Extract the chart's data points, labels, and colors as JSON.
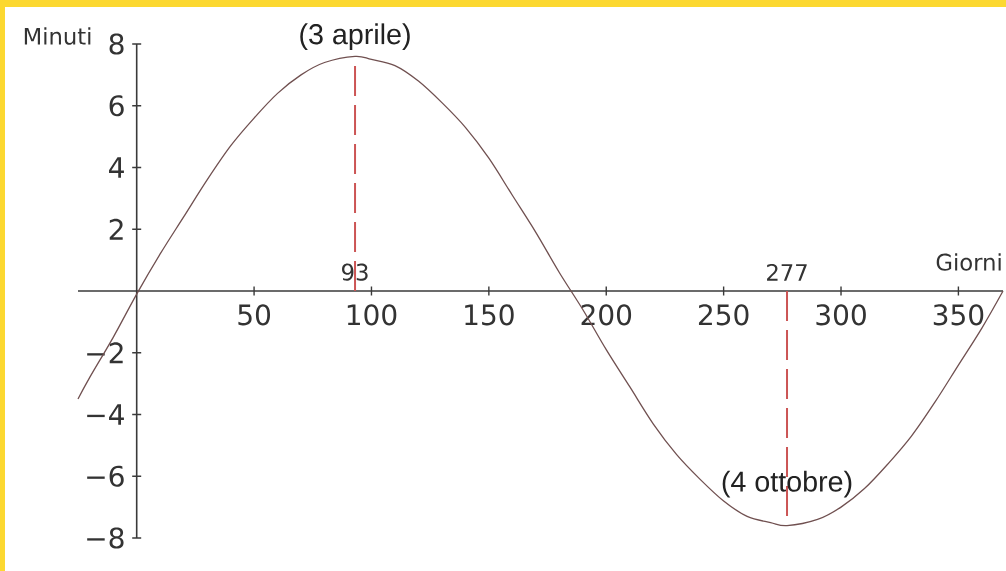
{
  "chart_data": {
    "type": "line",
    "xlabel": "Giorni",
    "ylabel": "Minuti",
    "x": [
      -25,
      -20,
      -10,
      0,
      10,
      20,
      30,
      40,
      50,
      60,
      70,
      80,
      93,
      100,
      110,
      120,
      130,
      140,
      150,
      160,
      170,
      180,
      190,
      200,
      210,
      220,
      230,
      240,
      250,
      260,
      270,
      277,
      290,
      300,
      310,
      320,
      330,
      340,
      350,
      360,
      369
    ],
    "series": [
      {
        "color": "#705050",
        "values": [
          -3.5,
          -2.8,
          -1.5,
          -0.1,
          1.2,
          2.4,
          3.6,
          4.7,
          5.6,
          6.4,
          7.0,
          7.4,
          7.6,
          7.5,
          7.3,
          6.8,
          6.1,
          5.3,
          4.3,
          3.1,
          1.9,
          0.6,
          -0.6,
          -1.9,
          -3.1,
          -4.3,
          -5.3,
          -6.1,
          -6.8,
          -7.3,
          -7.5,
          -7.6,
          -7.4,
          -7.0,
          -6.4,
          -5.6,
          -4.7,
          -3.6,
          -2.4,
          -1.2,
          0
        ]
      }
    ],
    "xlim": [
      -25,
      369
    ],
    "ylim": [
      -8,
      8
    ],
    "xticks": [
      50,
      100,
      150,
      200,
      250,
      300,
      350
    ],
    "yticks": [
      {
        "value": -8,
        "label": "−8"
      },
      {
        "value": -6,
        "label": "−6"
      },
      {
        "value": -4,
        "label": "−4"
      },
      {
        "value": -2,
        "label": "−2"
      },
      2,
      4,
      6,
      8
    ],
    "ref_lines": [
      {
        "axis": "x",
        "value": 93,
        "label": "93",
        "color": "#cc5555",
        "line_style": "dashed"
      },
      {
        "axis": "x",
        "value": 277,
        "label": "277",
        "color": "#cc5555",
        "line_style": "dashed"
      }
    ],
    "annotations": [
      {
        "text": "(3 aprile)",
        "x": 93,
        "y": 7.6
      },
      {
        "text": "(4 ottobre)",
        "x": 277,
        "y": -7.6
      }
    ]
  }
}
